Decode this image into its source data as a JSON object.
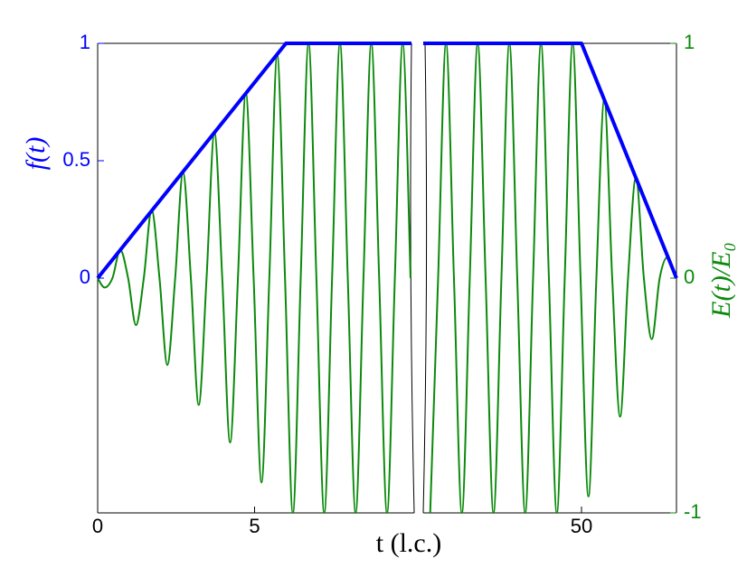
{
  "chart_data": {
    "type": "line",
    "xlabel": "t (l.c.)",
    "ylabel": "f(t)",
    "y2label": "E(t)/E₀",
    "ylim": [
      -1,
      1
    ],
    "yticks": [
      0,
      0.5,
      1
    ],
    "y2lim": [
      -1,
      1
    ],
    "y2ticks": [
      -1,
      0,
      1
    ],
    "ycolor": "#0000ff",
    "y2color": "#0b8a0b",
    "x_segments": [
      {
        "xlim": [
          0,
          10
        ],
        "xticks": [
          0,
          5
        ]
      },
      {
        "xlim": [
          45,
          53
        ],
        "xticks": [
          50
        ]
      }
    ],
    "series": [
      {
        "color": "#0000ff",
        "axis": "y",
        "segments": [
          {
            "x": [
              0,
              6,
              10
            ],
            "values": [
              0,
              1,
              1
            ]
          },
          {
            "x": [
              45,
              50,
              53
            ],
            "values": [
              1,
              1,
              0
            ]
          }
        ]
      },
      {
        "color": "#0b8a0b",
        "axis": "y2",
        "segments": [
          {
            "x": [
              0,
              0.22,
              0.47,
              0.72,
              0.97,
              1.22,
              1.47,
              1.72,
              1.97,
              2.22,
              2.47,
              2.72,
              2.97,
              3.22,
              3.47,
              3.72,
              3.97,
              4.22,
              4.47,
              4.72,
              4.97,
              5.22,
              5.47,
              5.72,
              5.97,
              6.22,
              6.47,
              6.72,
              6.97,
              7.22,
              7.47,
              7.72,
              7.97,
              8.22,
              8.47,
              8.72,
              8.97,
              9.22,
              9.47,
              9.72,
              9.97
            ],
            "values": [
              0,
              -0.04,
              0,
              0.12,
              0,
              -0.2,
              0,
              0.29,
              0,
              -0.37,
              0,
              0.45,
              0,
              -0.54,
              0,
              0.62,
              0,
              -0.7,
              0,
              0.79,
              0,
              -0.87,
              0,
              0.95,
              0,
              -1,
              0,
              1,
              0,
              -1,
              0,
              1,
              0,
              -1,
              0,
              1,
              0,
              -1,
              0,
              1,
              0
            ]
          },
          {
            "x": [
              45.22,
              45.47,
              45.72,
              45.97,
              46.22,
              46.47,
              46.72,
              46.97,
              47.22,
              47.47,
              47.72,
              47.97,
              48.22,
              48.47,
              48.72,
              48.97,
              49.22,
              49.47,
              49.72,
              49.97,
              50.22,
              50.47,
              50.72,
              50.97,
              51.22,
              51.47,
              51.72,
              51.97,
              52.22,
              52.47,
              52.72,
              52.97
            ],
            "values": [
              -1,
              0,
              1,
              0,
              -1,
              0,
              1,
              0,
              -1,
              0,
              1,
              0,
              -1,
              0,
              1,
              0,
              -1,
              0,
              1,
              0,
              -0.93,
              0,
              0.76,
              0,
              -0.59,
              0,
              0.43,
              0,
              -0.26,
              0,
              0.09,
              0
            ]
          }
        ]
      }
    ]
  }
}
